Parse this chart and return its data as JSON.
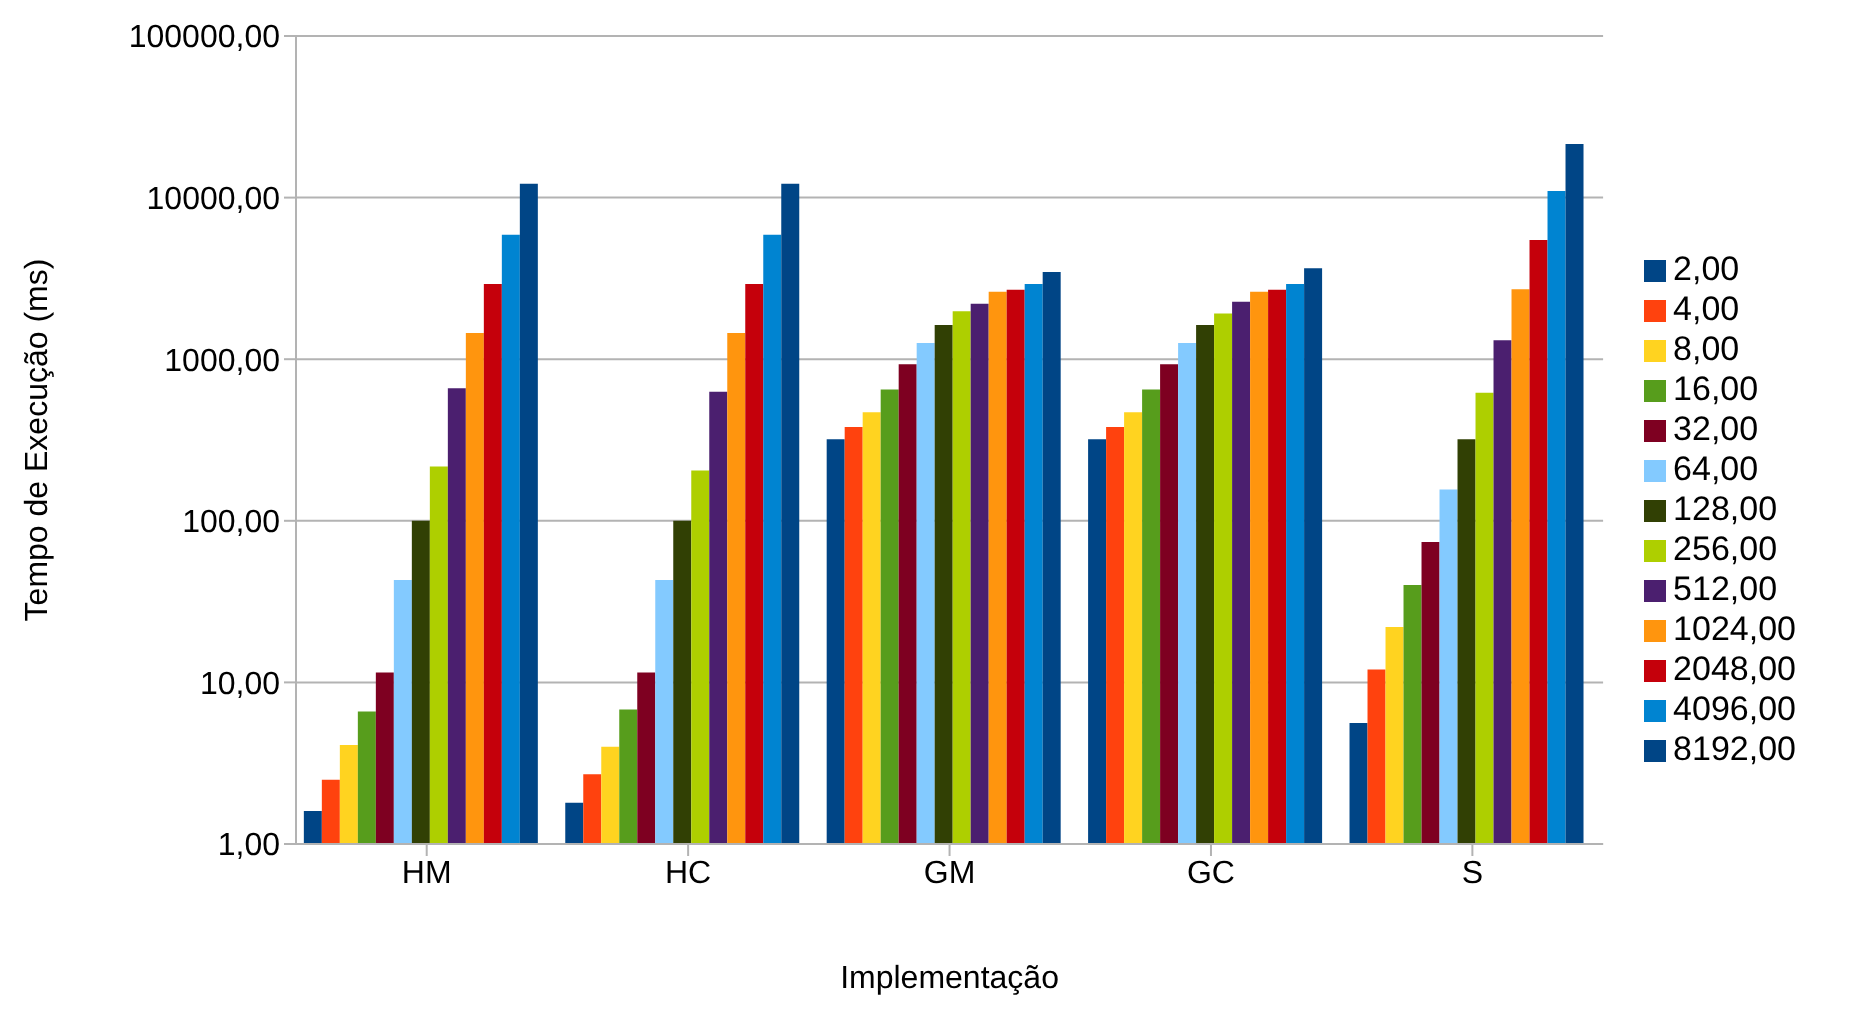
{
  "chart_data": {
    "type": "bar",
    "xlabel": "Implementação",
    "ylabel": "Tempo de Execução (ms)",
    "categories": [
      "HM",
      "HC",
      "GM",
      "GC",
      "S"
    ],
    "log": true,
    "grid": "y",
    "legend": "right",
    "ylim": [
      1,
      100000
    ],
    "yticks": [
      {
        "value": 1,
        "label": "1,00"
      },
      {
        "value": 10,
        "label": "10,00"
      },
      {
        "value": 100,
        "label": "100,00"
      },
      {
        "value": 1000,
        "label": "1000,00"
      },
      {
        "value": 10000,
        "label": "10000,00"
      },
      {
        "value": 100000,
        "label": "100000,00"
      }
    ],
    "series": [
      {
        "name": "2,00",
        "color": "#004586",
        "values": [
          1.6,
          1.8,
          320,
          320,
          5.6
        ]
      },
      {
        "name": "4,00",
        "color": "#ff420e",
        "values": [
          2.5,
          2.7,
          380,
          380,
          12
        ]
      },
      {
        "name": "8,00",
        "color": "#ffd320",
        "values": [
          4.1,
          4,
          470,
          470,
          22
        ]
      },
      {
        "name": "16,00",
        "color": "#579d1c",
        "values": [
          6.6,
          6.8,
          650,
          650,
          40
        ]
      },
      {
        "name": "32,00",
        "color": "#7e0021",
        "values": [
          11.5,
          11.5,
          930,
          930,
          74
        ]
      },
      {
        "name": "64,00",
        "color": "#83caff",
        "values": [
          43,
          43,
          1260,
          1260,
          156
        ]
      },
      {
        "name": "128,00",
        "color": "#314004",
        "values": [
          100,
          100,
          1630,
          1630,
          320
        ]
      },
      {
        "name": "256,00",
        "color": "#aecf00",
        "values": [
          217,
          205,
          1980,
          1920,
          620
        ]
      },
      {
        "name": "512,00",
        "color": "#4b1f6f",
        "values": [
          660,
          630,
          2200,
          2270,
          1310
        ]
      },
      {
        "name": "1024,00",
        "color": "#ff950e",
        "values": [
          1450,
          1450,
          2610,
          2610,
          2710
        ]
      },
      {
        "name": "2048,00",
        "color": "#c5000b",
        "values": [
          2920,
          2920,
          2690,
          2690,
          5460
        ]
      },
      {
        "name": "4096,00",
        "color": "#0084d1",
        "values": [
          5880,
          5880,
          2920,
          2920,
          10980
        ]
      },
      {
        "name": "8192,00",
        "color": "#004586",
        "values": [
          12170,
          12170,
          3460,
          3660,
          21500
        ]
      }
    ]
  }
}
